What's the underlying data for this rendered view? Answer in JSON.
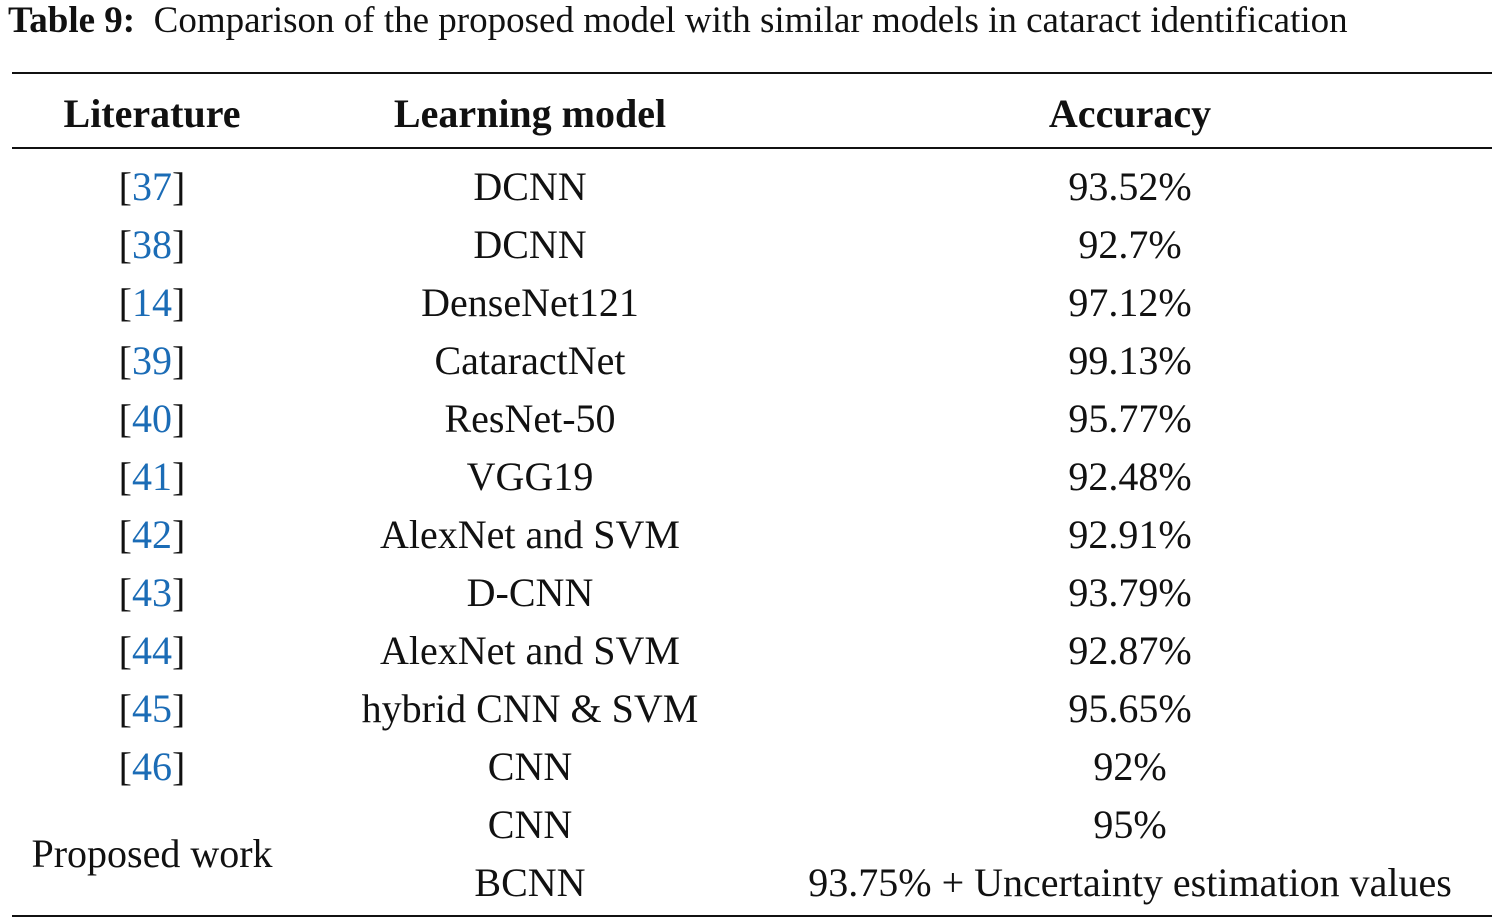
{
  "caption": {
    "label": "Table 9:",
    "text": "Comparison of the proposed model with similar models in cataract identification"
  },
  "table": {
    "header": [
      "Literature",
      "Learning model",
      "Accuracy"
    ],
    "rows": [
      {
        "literature": [
          "[",
          "37",
          "]"
        ],
        "model": "DCNN",
        "accuracy": "93.52%"
      },
      {
        "literature": [
          "[",
          "38",
          "]"
        ],
        "model": "DCNN",
        "accuracy": "92.7%"
      },
      {
        "literature": [
          "[",
          "14",
          "]"
        ],
        "model": "DenseNet121",
        "accuracy": "97.12%"
      },
      {
        "literature": [
          "[",
          "39",
          "]"
        ],
        "model": "CataractNet",
        "accuracy": "99.13%"
      },
      {
        "literature": [
          "[",
          "40",
          "]"
        ],
        "model": "ResNet-50",
        "accuracy": "95.77%"
      },
      {
        "literature": [
          "[",
          "41",
          "]"
        ],
        "model": "VGG19",
        "accuracy": "92.48%"
      },
      {
        "literature": [
          "[",
          "42",
          "]"
        ],
        "model": "AlexNet and SVM",
        "accuracy": "92.91%"
      },
      {
        "literature": [
          "[",
          "43",
          "]"
        ],
        "model": "D-CNN",
        "accuracy": "93.79%"
      },
      {
        "literature": [
          "[",
          "44",
          "]"
        ],
        "model": "AlexNet and SVM",
        "accuracy": "92.87%"
      },
      {
        "literature": [
          "[",
          "45",
          "]"
        ],
        "model": "hybrid CNN & SVM",
        "accuracy": "95.65%"
      },
      {
        "literature": [
          "[",
          "46",
          "]"
        ],
        "model": "CNN",
        "accuracy": "92%"
      }
    ],
    "proposed": {
      "literature": "Proposed work",
      "entries": [
        {
          "model": "CNN",
          "accuracy": "95%"
        },
        {
          "model": "BCNN",
          "accuracy": "93.75% + Uncertainty estimation values"
        }
      ]
    }
  }
}
